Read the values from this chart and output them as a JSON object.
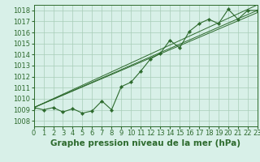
{
  "hours": [
    0,
    1,
    2,
    3,
    4,
    5,
    6,
    7,
    8,
    9,
    10,
    11,
    12,
    13,
    14,
    15,
    16,
    17,
    18,
    19,
    20,
    21,
    22,
    23
  ],
  "pressure": [
    1009.2,
    1009.0,
    1009.2,
    1008.8,
    1009.1,
    1008.7,
    1008.9,
    1009.8,
    1009.0,
    1011.1,
    1011.5,
    1012.5,
    1013.6,
    1014.1,
    1015.3,
    1014.6,
    1016.1,
    1016.8,
    1017.2,
    1016.8,
    1018.1,
    1017.2,
    1018.0,
    1018.0
  ],
  "ylim": [
    1007.5,
    1018.5
  ],
  "xlim": [
    0,
    23
  ],
  "yticks": [
    1008,
    1009,
    1010,
    1011,
    1012,
    1013,
    1014,
    1015,
    1016,
    1017,
    1018
  ],
  "xticks": [
    0,
    1,
    2,
    3,
    4,
    5,
    6,
    7,
    8,
    9,
    10,
    11,
    12,
    13,
    14,
    15,
    16,
    17,
    18,
    19,
    20,
    21,
    22,
    23
  ],
  "line_color": "#2d6a2d",
  "bg_color": "#d8f0e8",
  "grid_color": "#a8cdb8",
  "xlabel": "Graphe pression niveau de la mer (hPa)",
  "xlabel_fontsize": 7.5,
  "tick_fontsize": 6.0,
  "straight_lines": [
    [
      0,
      1009.2,
      23,
      1017.8
    ],
    [
      0,
      1009.2,
      23,
      1018.0
    ],
    [
      0,
      1009.2,
      23,
      1018.5
    ]
  ]
}
